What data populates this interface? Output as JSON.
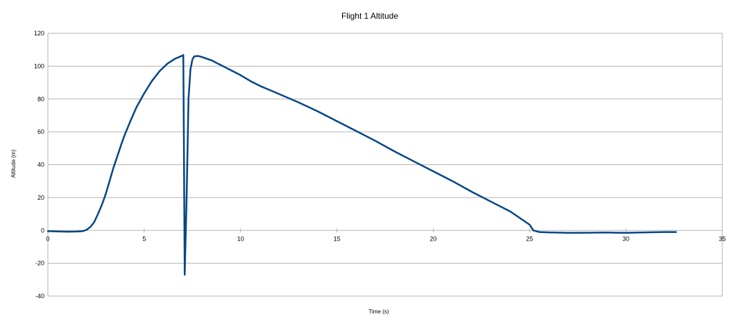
{
  "colors": {
    "series": "#004586",
    "grid": "#b3b3b3",
    "background": "#ffffff"
  },
  "chart_data": {
    "type": "line",
    "title": "Flight 1 Altitude",
    "xlabel": "Time (s)",
    "ylabel": "Altitude (m)",
    "xlim": [
      0,
      35
    ],
    "ylim": [
      -40,
      120
    ],
    "x_ticks": [
      0,
      5,
      10,
      15,
      20,
      25,
      30,
      35
    ],
    "y_ticks": [
      -40,
      -20,
      0,
      20,
      40,
      60,
      80,
      100,
      120
    ],
    "grid": "horizontal",
    "legend": "none",
    "series": [
      {
        "x": [
          0,
          0.5,
          1.0,
          1.5,
          1.8,
          2.0,
          2.2,
          2.4,
          2.6,
          2.8,
          3.0,
          3.2,
          3.4,
          3.6,
          3.8,
          4.0,
          4.3,
          4.6,
          5.0,
          5.4,
          5.8,
          6.2,
          6.6,
          6.9,
          7.0,
          7.03,
          7.06,
          7.1,
          7.2,
          7.3,
          7.4,
          7.5,
          7.6,
          7.8,
          8.0,
          8.5,
          9.0,
          9.5,
          10.0,
          10.5,
          11.0,
          12.0,
          13.0,
          14.0,
          15.0,
          16.0,
          17.0,
          18.0,
          19.0,
          20.0,
          21.0,
          22.0,
          23.0,
          24.0,
          24.5,
          25.0,
          25.2,
          25.5,
          26.0,
          27.0,
          28.0,
          29.0,
          30.0,
          31.0,
          32.0,
          32.6
        ],
        "y": [
          -0.5,
          -0.6,
          -0.8,
          -0.7,
          -0.5,
          0.3,
          2.0,
          5.0,
          10.0,
          15.5,
          22.0,
          30.0,
          38.0,
          45.0,
          52.0,
          58.5,
          67.0,
          75.0,
          83.5,
          91.0,
          97.0,
          101.5,
          104.5,
          106.0,
          106.5,
          106.8,
          50.0,
          -27.0,
          20.0,
          80.0,
          98.0,
          104.0,
          106.0,
          106.2,
          105.5,
          103.5,
          100.5,
          97.5,
          94.5,
          91.0,
          88.0,
          83.0,
          78.0,
          72.5,
          66.5,
          60.5,
          54.5,
          48.0,
          42.0,
          36.0,
          30.0,
          23.5,
          17.5,
          11.5,
          7.5,
          3.5,
          0.0,
          -1.0,
          -1.2,
          -1.5,
          -1.4,
          -1.3,
          -1.5,
          -1.2,
          -1.0,
          -1.0
        ]
      }
    ]
  }
}
